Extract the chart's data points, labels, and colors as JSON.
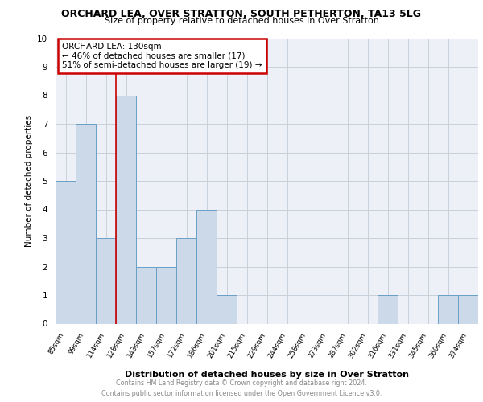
{
  "title_line1": "ORCHARD LEA, OVER STRATTON, SOUTH PETHERTON, TA13 5LG",
  "title_line2": "Size of property relative to detached houses in Over Stratton",
  "xlabel": "Distribution of detached houses by size in Over Stratton",
  "ylabel": "Number of detached properties",
  "footer_line1": "Contains HM Land Registry data © Crown copyright and database right 2024.",
  "footer_line2": "Contains public sector information licensed under the Open Government Licence v3.0.",
  "categories": [
    "85sqm",
    "99sqm",
    "114sqm",
    "128sqm",
    "143sqm",
    "157sqm",
    "172sqm",
    "186sqm",
    "201sqm",
    "215sqm",
    "229sqm",
    "244sqm",
    "258sqm",
    "273sqm",
    "287sqm",
    "302sqm",
    "316sqm",
    "331sqm",
    "345sqm",
    "360sqm",
    "374sqm"
  ],
  "values": [
    5,
    7,
    3,
    8,
    2,
    2,
    3,
    4,
    1,
    0,
    0,
    0,
    0,
    0,
    0,
    0,
    1,
    0,
    0,
    1,
    1
  ],
  "bar_color": "#ccd9e8",
  "bar_edge_color": "#6a9fc8",
  "annotation_text": "ORCHARD LEA: 130sqm\n← 46% of detached houses are smaller (17)\n51% of semi-detached houses are larger (19) →",
  "annotation_box_color": "#cc0000",
  "red_line_x": 3,
  "ylim": [
    0,
    10
  ],
  "yticks": [
    0,
    1,
    2,
    3,
    4,
    5,
    6,
    7,
    8,
    9,
    10
  ],
  "grid_color": "#c8d0dc",
  "bg_color": "#edf1f7",
  "title_fontsize": 9,
  "subtitle_fontsize": 8
}
